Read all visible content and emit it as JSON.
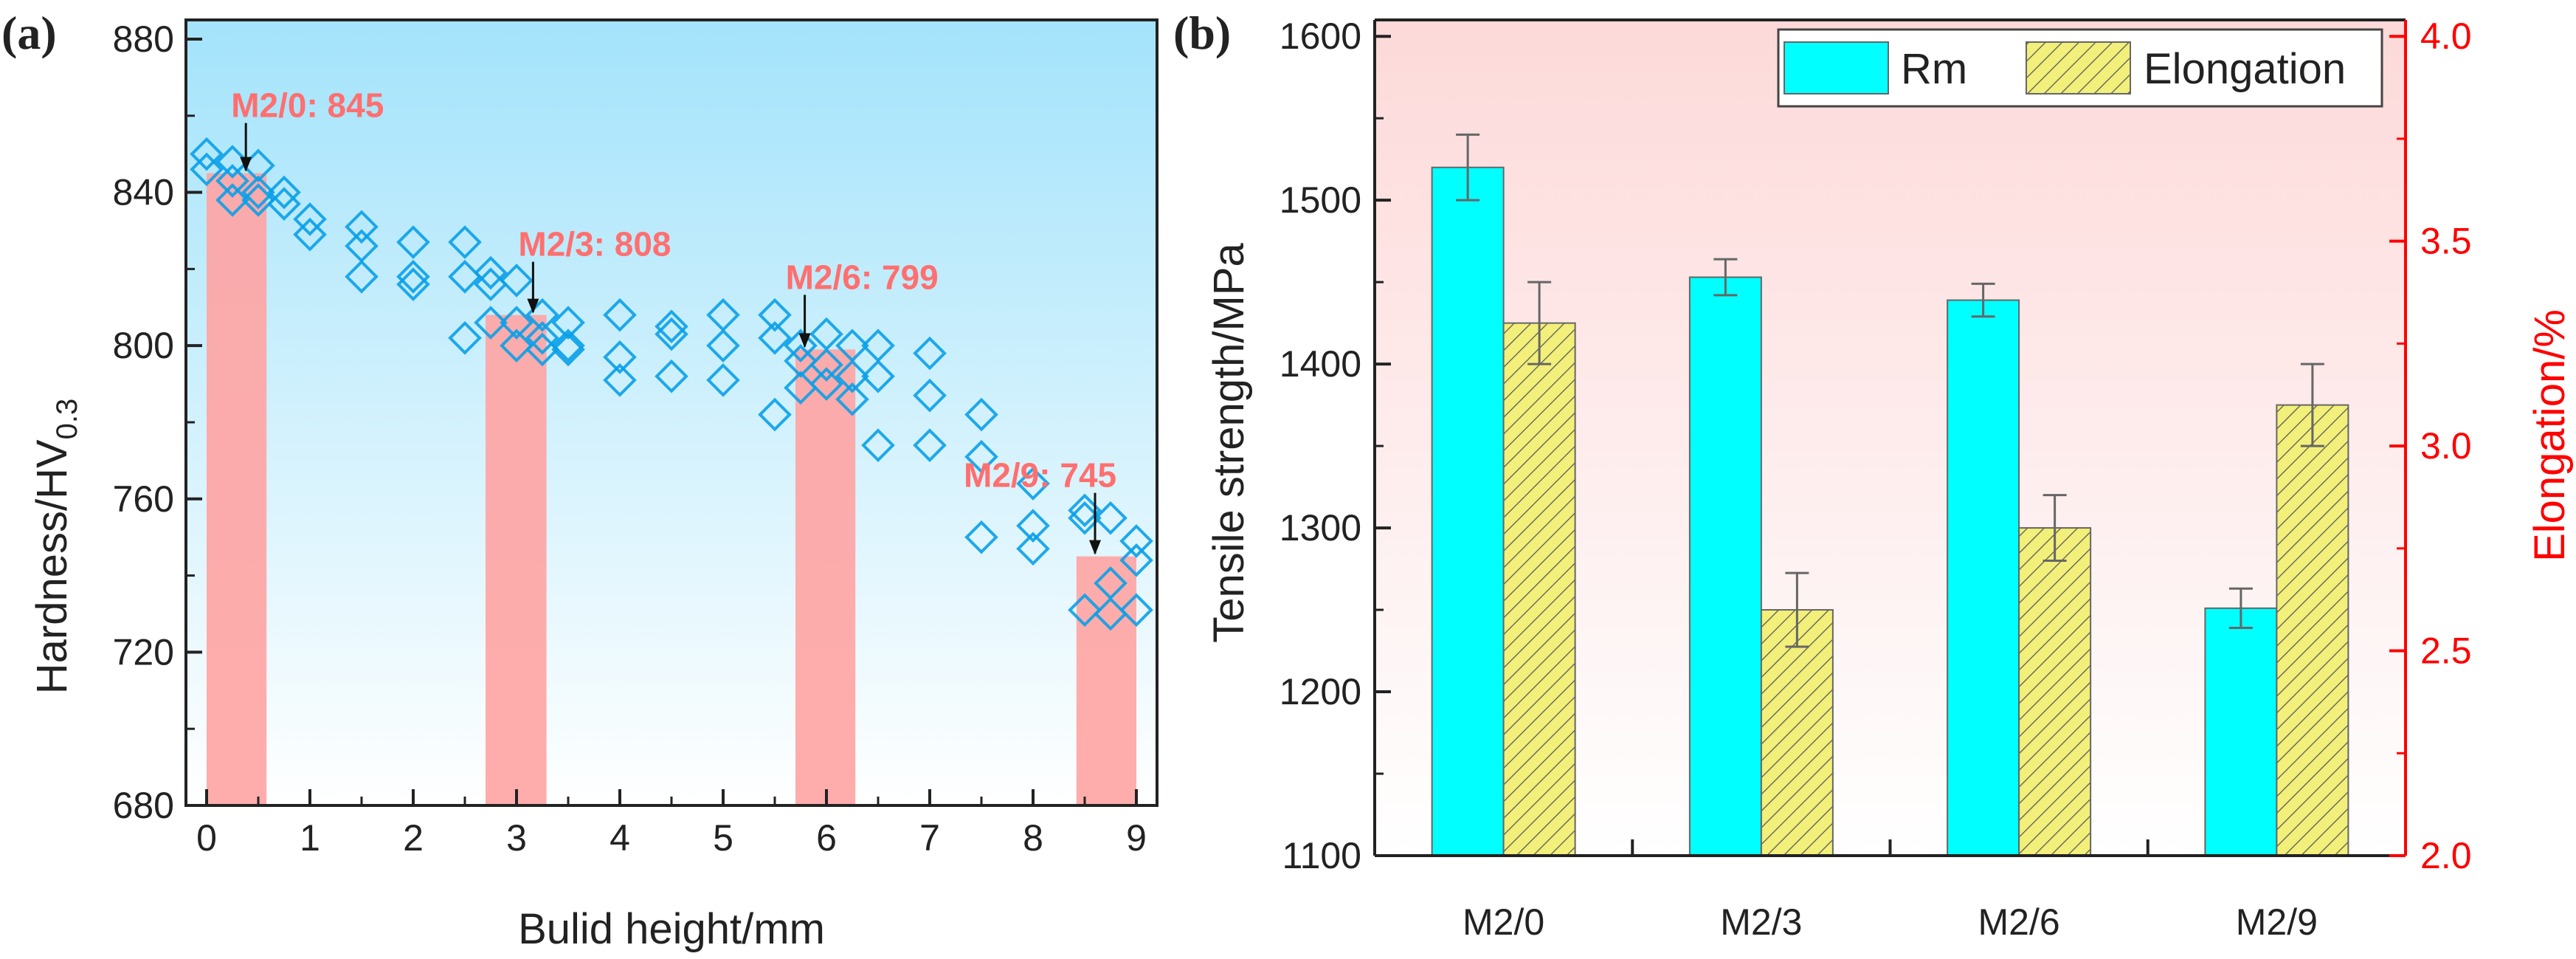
{
  "chart_data": [
    {
      "type": "scatter",
      "panel_label": "(a)",
      "xlabel": "Bulid height/mm",
      "ylabel_main": "Hardness/HV",
      "ylabel_sub": "0.3",
      "xlim": [
        -0.2,
        9.2
      ],
      "ylim": [
        680,
        885
      ],
      "xticks": [
        "0",
        "1",
        "2",
        "3",
        "4",
        "5",
        "6",
        "7",
        "8",
        "9"
      ],
      "yticks": [
        "680",
        "720",
        "760",
        "800",
        "840",
        "880"
      ],
      "grid": false,
      "background": [
        "#a3e3fb",
        "#ffffff"
      ],
      "marker_color": "#0aa0e8",
      "bar_color": "#ffa3a3",
      "annotation_color": "#ff6f6f",
      "bars": [
        {
          "name": "M2/0",
          "x_start": 0,
          "x_end": 0.58,
          "value": 845,
          "label": "M2/0: 845",
          "arrow_x": 0.38
        },
        {
          "name": "M2/3",
          "x_start": 2.7,
          "x_end": 3.29,
          "value": 808,
          "label": "M2/3: 808",
          "arrow_x": 3.16
        },
        {
          "name": "M2/6",
          "x_start": 5.7,
          "x_end": 6.28,
          "value": 799,
          "label": "M2/6: 799",
          "arrow_x": 5.79
        },
        {
          "name": "M2/9",
          "x_start": 8.42,
          "x_end": 9.0,
          "value": 745,
          "label": "M2/9: 745",
          "arrow_x": 8.6
        }
      ],
      "points": [
        [
          0,
          850
        ],
        [
          0,
          846
        ],
        [
          0.25,
          848
        ],
        [
          0.25,
          838
        ],
        [
          0.25,
          843
        ],
        [
          0.5,
          847
        ],
        [
          0.5,
          840
        ],
        [
          0.5,
          838
        ],
        [
          0.75,
          840
        ],
        [
          0.75,
          837
        ],
        [
          1,
          833
        ],
        [
          1,
          829
        ],
        [
          1.5,
          831
        ],
        [
          1.5,
          826
        ],
        [
          1.5,
          818
        ],
        [
          2,
          827
        ],
        [
          2,
          818
        ],
        [
          2,
          816
        ],
        [
          2.5,
          827
        ],
        [
          2.5,
          818
        ],
        [
          2.5,
          802
        ],
        [
          2.75,
          819
        ],
        [
          2.75,
          816
        ],
        [
          2.75,
          806
        ],
        [
          3,
          817
        ],
        [
          3,
          806
        ],
        [
          3,
          800
        ],
        [
          3.25,
          808
        ],
        [
          3.25,
          802
        ],
        [
          3.25,
          799
        ],
        [
          3.5,
          806
        ],
        [
          3.5,
          800
        ],
        [
          3.5,
          799
        ],
        [
          4,
          808
        ],
        [
          4,
          797
        ],
        [
          4,
          791
        ],
        [
          4.5,
          805
        ],
        [
          4.5,
          803
        ],
        [
          4.5,
          792
        ],
        [
          5,
          808
        ],
        [
          5,
          800
        ],
        [
          5,
          791
        ],
        [
          5.5,
          808
        ],
        [
          5.5,
          802
        ],
        [
          5.5,
          782
        ],
        [
          5.75,
          800
        ],
        [
          5.75,
          796
        ],
        [
          5.75,
          789
        ],
        [
          6,
          803
        ],
        [
          6,
          795
        ],
        [
          6,
          790
        ],
        [
          6.25,
          800
        ],
        [
          6.25,
          792
        ],
        [
          6.25,
          786
        ],
        [
          6.5,
          800
        ],
        [
          6.5,
          792
        ],
        [
          6.5,
          774
        ],
        [
          7,
          798
        ],
        [
          7,
          787
        ],
        [
          7,
          774
        ],
        [
          7.5,
          782
        ],
        [
          7.5,
          771
        ],
        [
          7.5,
          750
        ],
        [
          8,
          764
        ],
        [
          8,
          753
        ],
        [
          8,
          747
        ],
        [
          8.5,
          757
        ],
        [
          8.5,
          755
        ],
        [
          8.5,
          731
        ],
        [
          8.75,
          755
        ],
        [
          8.75,
          738
        ],
        [
          8.75,
          730
        ],
        [
          9,
          749
        ],
        [
          9,
          744
        ],
        [
          9,
          731
        ]
      ]
    },
    {
      "type": "bar",
      "panel_label": "(b)",
      "categories": [
        "M2/0",
        "M2/3",
        "M2/6",
        "M2/9"
      ],
      "ylabel": "Tensile strength/MPa",
      "ylabel_right": "Elongation/%",
      "ylim": [
        1100,
        1610
      ],
      "ylim_right": [
        2.0,
        4.04
      ],
      "yticks": [
        "1100",
        "1200",
        "1300",
        "1400",
        "1500",
        "1600"
      ],
      "yticks_right": [
        "2.0",
        "2.5",
        "3.0",
        "3.5",
        "4.0"
      ],
      "grid": false,
      "legend_position": "top-right",
      "background": [
        "#fdd9d9",
        "#ffffff"
      ],
      "right_axis_color": "#ff0000",
      "series": [
        {
          "name": "Rm",
          "axis": "left",
          "color": "#00ffff",
          "values": [
            1520,
            1453,
            1439,
            1251
          ],
          "errors": [
            20,
            11,
            10,
            12
          ]
        },
        {
          "name": "Elongation",
          "axis": "right",
          "color": "#f2ef7a",
          "hatch": true,
          "values": [
            3.3,
            2.6,
            2.8,
            3.1
          ],
          "errors": [
            0.1,
            0.09,
            0.08,
            0.1
          ]
        }
      ]
    }
  ]
}
